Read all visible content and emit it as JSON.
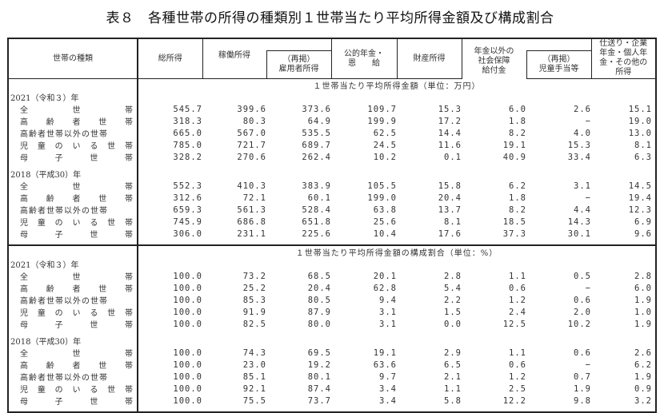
{
  "title": "表８　各種世帯の所得の種類別１世帯当たり平均所得金額及び構成割合",
  "headers": {
    "household_type": "世帯の種類",
    "total_income": "総所得",
    "earned_income": "稼働所得",
    "employee_income": "（再掲）\n雇用者所得",
    "employee_income_l1": "（再掲）",
    "employee_income_l2": "雇用者所得",
    "public_pension_l1": "公的年金・",
    "public_pension_l2": "恩　　給",
    "property_income": "財産所得",
    "social_security_l1": "年金以外の",
    "social_security_l2": "社会保障",
    "social_security_l3": "給付金",
    "child_allowance_l1": "（再掲）",
    "child_allowance_l2": "児童手当等",
    "other_l1": "仕送り・企業",
    "other_l2": "年金・個人年",
    "other_l3": "金・その他の",
    "other_l4": "所得"
  },
  "sections": [
    {
      "heading": "１世帯当たり平均所得金額（単位：万円）",
      "years": [
        {
          "label": "2021（令和３）年",
          "rows": [
            {
              "name": [
                "全",
                "世",
                "帯"
              ],
              "values": [
                "545.7",
                "399.6",
                "373.6",
                "109.7",
                "15.3",
                "6.0",
                "2.6",
                "15.1"
              ]
            },
            {
              "name": [
                "高",
                "齢",
                "者",
                "世",
                "帯"
              ],
              "values": [
                "318.3",
                "80.3",
                "64.9",
                "199.9",
                "17.2",
                "1.8",
                "−",
                "19.0"
              ]
            },
            {
              "name": [
                "高齢者世帯以外の世帯"
              ],
              "values": [
                "665.0",
                "567.0",
                "535.5",
                "62.5",
                "14.4",
                "8.2",
                "4.0",
                "13.0"
              ]
            },
            {
              "name": [
                "児",
                "童",
                "の",
                "い",
                "る",
                "世",
                "帯"
              ],
              "values": [
                "785.0",
                "721.7",
                "689.7",
                "24.5",
                "11.6",
                "19.1",
                "15.3",
                "8.1"
              ]
            },
            {
              "name": [
                "母",
                "子",
                "世",
                "帯"
              ],
              "values": [
                "328.2",
                "270.6",
                "262.4",
                "10.2",
                "0.1",
                "40.9",
                "33.4",
                "6.3"
              ]
            }
          ]
        },
        {
          "label": "2018（平成30）年",
          "rows": [
            {
              "name": [
                "全",
                "世",
                "帯"
              ],
              "values": [
                "552.3",
                "410.3",
                "383.9",
                "105.5",
                "15.8",
                "6.2",
                "3.1",
                "14.5"
              ]
            },
            {
              "name": [
                "高",
                "齢",
                "者",
                "世",
                "帯"
              ],
              "values": [
                "312.6",
                "72.1",
                "60.1",
                "199.0",
                "20.4",
                "1.8",
                "−",
                "19.4"
              ]
            },
            {
              "name": [
                "高齢者世帯以外の世帯"
              ],
              "values": [
                "659.3",
                "561.3",
                "528.4",
                "63.8",
                "13.7",
                "8.2",
                "4.4",
                "12.3"
              ]
            },
            {
              "name": [
                "児",
                "童",
                "の",
                "い",
                "る",
                "世",
                "帯"
              ],
              "values": [
                "745.9",
                "686.8",
                "651.8",
                "25.6",
                "8.1",
                "18.5",
                "14.3",
                "6.9"
              ]
            },
            {
              "name": [
                "母",
                "子",
                "世",
                "帯"
              ],
              "values": [
                "306.0",
                "231.1",
                "225.6",
                "10.4",
                "17.6",
                "37.3",
                "30.1",
                "9.6"
              ]
            }
          ]
        }
      ]
    },
    {
      "heading": "１世帯当たり平均所得金額の構成割合（単位：%）",
      "years": [
        {
          "label": "2021（令和３）年",
          "rows": [
            {
              "name": [
                "全",
                "世",
                "帯"
              ],
              "values": [
                "100.0",
                "73.2",
                "68.5",
                "20.1",
                "2.8",
                "1.1",
                "0.5",
                "2.8"
              ]
            },
            {
              "name": [
                "高",
                "齢",
                "者",
                "世",
                "帯"
              ],
              "values": [
                "100.0",
                "25.2",
                "20.4",
                "62.8",
                "5.4",
                "0.6",
                "−",
                "6.0"
              ]
            },
            {
              "name": [
                "高齢者世帯以外の世帯"
              ],
              "values": [
                "100.0",
                "85.3",
                "80.5",
                "9.4",
                "2.2",
                "1.2",
                "0.6",
                "1.9"
              ]
            },
            {
              "name": [
                "児",
                "童",
                "の",
                "い",
                "る",
                "世",
                "帯"
              ],
              "values": [
                "100.0",
                "91.9",
                "87.9",
                "3.1",
                "1.5",
                "2.4",
                "2.0",
                "1.0"
              ]
            },
            {
              "name": [
                "母",
                "子",
                "世",
                "帯"
              ],
              "values": [
                "100.0",
                "82.5",
                "80.0",
                "3.1",
                "0.0",
                "12.5",
                "10.2",
                "1.9"
              ]
            }
          ]
        },
        {
          "label": "2018（平成30）年",
          "rows": [
            {
              "name": [
                "全",
                "世",
                "帯"
              ],
              "values": [
                "100.0",
                "74.3",
                "69.5",
                "19.1",
                "2.9",
                "1.1",
                "0.6",
                "2.6"
              ]
            },
            {
              "name": [
                "高",
                "齢",
                "者",
                "世",
                "帯"
              ],
              "values": [
                "100.0",
                "23.0",
                "19.2",
                "63.6",
                "6.5",
                "0.6",
                "−",
                "6.2"
              ]
            },
            {
              "name": [
                "高齢者世帯以外の世帯"
              ],
              "values": [
                "100.0",
                "85.1",
                "80.1",
                "9.7",
                "2.1",
                "1.2",
                "0.7",
                "1.9"
              ]
            },
            {
              "name": [
                "児",
                "童",
                "の",
                "い",
                "る",
                "世",
                "帯"
              ],
              "values": [
                "100.0",
                "92.1",
                "87.4",
                "3.4",
                "1.1",
                "2.5",
                "1.9",
                "0.9"
              ]
            },
            {
              "name": [
                "母",
                "子",
                "世",
                "帯"
              ],
              "values": [
                "100.0",
                "75.5",
                "73.7",
                "3.4",
                "5.8",
                "12.2",
                "9.8",
                "3.2"
              ]
            }
          ]
        }
      ]
    }
  ]
}
